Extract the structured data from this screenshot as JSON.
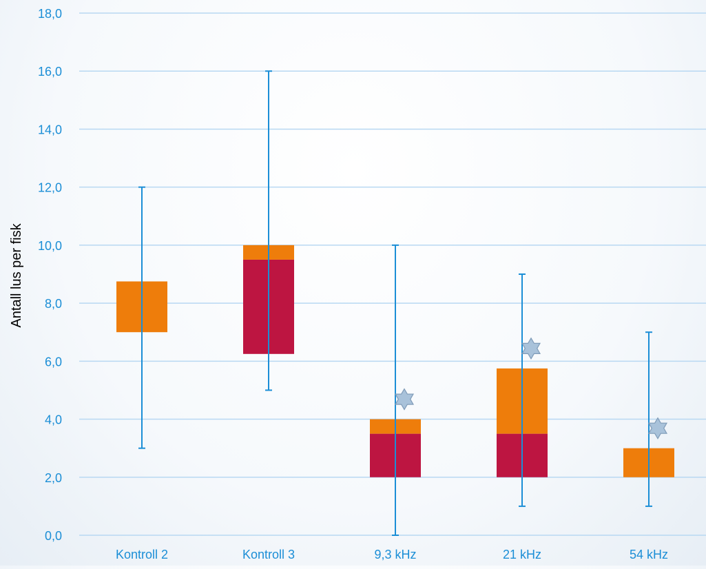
{
  "chart_data": {
    "type": "boxplot",
    "title": "",
    "ylabel": "Antall lus per fisk",
    "xlabel": "",
    "ylim": [
      0,
      18
    ],
    "yticks": [
      0,
      2,
      4,
      6,
      8,
      10,
      12,
      14,
      16,
      18
    ],
    "ytick_labels": [
      "0,0",
      "2,0",
      "4,0",
      "6,0",
      "8,0",
      "10,0",
      "12,0",
      "14,0",
      "16,0",
      "18,0"
    ],
    "categories": [
      "Kontroll 2",
      "Kontroll 3",
      "9,3 kHz",
      "21 kHz",
      "54 kHz"
    ],
    "grid": true,
    "legend": "none",
    "boxes": [
      {
        "min": 3,
        "q1": 7,
        "median": 7,
        "q3": 8.75,
        "max": 12,
        "significant": false
      },
      {
        "min": 5,
        "q1": 6.25,
        "median": 9.5,
        "q3": 10,
        "max": 16,
        "significant": false
      },
      {
        "min": 0,
        "q1": 2,
        "median": 3.5,
        "q3": 4,
        "max": 10,
        "significant": true
      },
      {
        "min": 1,
        "q1": 2,
        "median": 3.5,
        "q3": 5.75,
        "max": 9,
        "significant": true
      },
      {
        "min": 1,
        "q1": 2,
        "median": 2,
        "q3": 3,
        "max": 7,
        "significant": true
      }
    ],
    "colors": {
      "lower_box": "#bd1541",
      "upper_box": "#ee7d0b",
      "whisker": "#1b8ed6",
      "grid": "#b8d8f2",
      "axis_text": "#1b8ed6",
      "star_fill": "#a9c2da",
      "star_stroke": "#7f9bb8"
    }
  }
}
